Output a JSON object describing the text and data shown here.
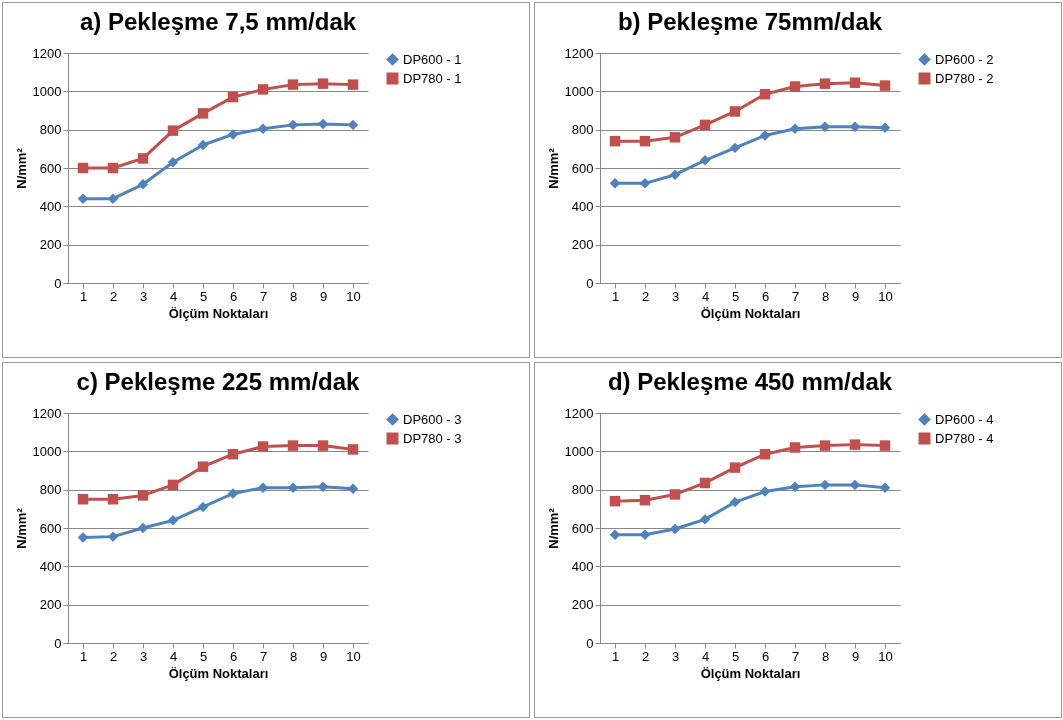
{
  "chart_data": [
    {
      "type": "line",
      "title": "a)  Pekleşme  7,5 mm/dak",
      "xlabel": "Ölçüm Noktaları",
      "ylabel": "N/mm²",
      "categories": [
        "1",
        "2",
        "3",
        "4",
        "5",
        "6",
        "7",
        "8",
        "9",
        "10"
      ],
      "ylim": [
        0,
        1200
      ],
      "yticks": [
        0,
        200,
        400,
        600,
        800,
        1000,
        1200
      ],
      "grid": "y",
      "legend": "right",
      "series": [
        {
          "name": "DP600 - 1",
          "color": "#4f81bd",
          "marker": "diamond",
          "values": [
            440,
            440,
            515,
            630,
            720,
            775,
            805,
            825,
            830,
            825
          ]
        },
        {
          "name": "DP780 - 1",
          "color": "#c0504d",
          "marker": "square",
          "values": [
            600,
            600,
            650,
            795,
            885,
            970,
            1010,
            1035,
            1040,
            1035
          ]
        }
      ]
    },
    {
      "type": "line",
      "title": "b) Pekleşme  75mm/dak",
      "xlabel": "Ölçüm Noktaları",
      "ylabel": "N/mm²",
      "categories": [
        "1",
        "2",
        "3",
        "4",
        "5",
        "6",
        "7",
        "8",
        "9",
        "10"
      ],
      "ylim": [
        0,
        1200
      ],
      "yticks": [
        0,
        200,
        400,
        600,
        800,
        1000,
        1200
      ],
      "grid": "y",
      "legend": "right",
      "series": [
        {
          "name": "DP600 - 2",
          "color": "#4f81bd",
          "marker": "diamond",
          "values": [
            520,
            520,
            565,
            640,
            705,
            770,
            805,
            815,
            815,
            810
          ]
        },
        {
          "name": "DP780 - 2",
          "color": "#c0504d",
          "marker": "square",
          "values": [
            740,
            740,
            760,
            825,
            895,
            985,
            1025,
            1040,
            1045,
            1030
          ]
        }
      ]
    },
    {
      "type": "line",
      "title": "c) Pekleşme 225 mm/dak",
      "xlabel": "Ölçüm Noktaları",
      "ylabel": "N/mm²",
      "categories": [
        "1",
        "2",
        "3",
        "4",
        "5",
        "6",
        "7",
        "8",
        "9",
        "10"
      ],
      "ylim": [
        0,
        1200
      ],
      "yticks": [
        0,
        200,
        400,
        600,
        800,
        1000,
        1200
      ],
      "grid": "y",
      "legend": "right",
      "series": [
        {
          "name": "DP600 - 3",
          "color": "#4f81bd",
          "marker": "diamond",
          "values": [
            550,
            555,
            600,
            640,
            710,
            780,
            810,
            810,
            815,
            805
          ]
        },
        {
          "name": "DP780 - 3",
          "color": "#c0504d",
          "marker": "square",
          "values": [
            750,
            750,
            770,
            825,
            920,
            985,
            1025,
            1030,
            1030,
            1010
          ]
        }
      ]
    },
    {
      "type": "line",
      "title": "d) Pekleşme  450 mm/dak",
      "xlabel": "Ölçüm Noktaları",
      "ylabel": "N/mm²",
      "categories": [
        "1",
        "2",
        "3",
        "4",
        "5",
        "6",
        "7",
        "8",
        "9",
        "10"
      ],
      "ylim": [
        0,
        1200
      ],
      "yticks": [
        0,
        200,
        400,
        600,
        800,
        1000,
        1200
      ],
      "grid": "y",
      "legend": "right",
      "series": [
        {
          "name": "DP600 - 4",
          "color": "#4f81bd",
          "marker": "diamond",
          "values": [
            565,
            565,
            595,
            645,
            735,
            790,
            815,
            825,
            825,
            810
          ]
        },
        {
          "name": "DP780 - 4",
          "color": "#c0504d",
          "marker": "square",
          "values": [
            740,
            745,
            775,
            835,
            915,
            985,
            1020,
            1030,
            1035,
            1030
          ]
        }
      ]
    }
  ]
}
